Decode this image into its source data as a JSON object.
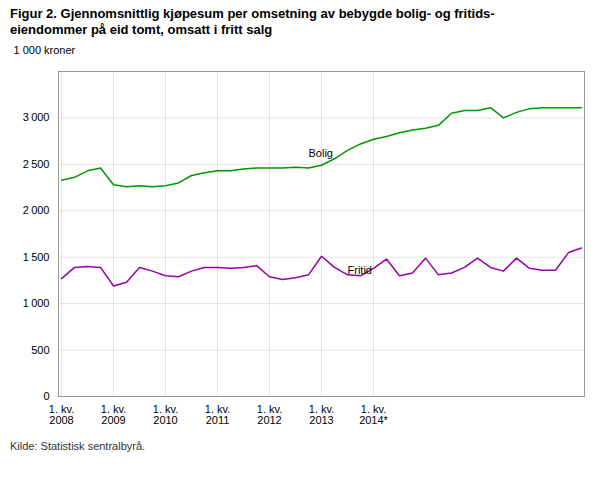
{
  "chart_data": {
    "type": "line",
    "title": "Figur 2. Gjennomsnittlig kjøpesum per omsetning av bebygde bolig- og fritids-\neiendommer på eid tomt, omsatt i fritt salg",
    "y_label": "1 000 kroner",
    "source": "Kilde: Statistisk sentralbyrå.",
    "categories": [
      "1. kv.\n2008",
      null,
      null,
      null,
      "1. kv.\n2009",
      null,
      null,
      null,
      "1. kv.\n2010",
      null,
      null,
      null,
      "1. kv.\n2011",
      null,
      null,
      null,
      "1. kv.\n2012",
      null,
      null,
      null,
      "1. kv.\n2013",
      null,
      null,
      null,
      "1. kv.\n2014*",
      null,
      null,
      null,
      null,
      null,
      null,
      null,
      null,
      null,
      null,
      null,
      null,
      null,
      null,
      null,
      null
    ],
    "series": [
      {
        "color": "#009900",
        "values": [
          2330,
          2360,
          2430,
          2460,
          2280,
          2260,
          2270,
          2260,
          2270,
          2300,
          2380,
          2410,
          2430,
          2430,
          2450,
          2460,
          2460,
          2460,
          2470,
          2460,
          2490,
          2560,
          2650,
          2720,
          2770,
          2800,
          2840,
          2870,
          2890,
          2920,
          3050,
          3080,
          3080,
          3110,
          3000,
          3060,
          3100,
          3110,
          3110,
          3110,
          3110
        ]
      },
      {
        "color": "#9900aa",
        "values": [
          1270,
          1390,
          1400,
          1390,
          1190,
          1230,
          1390,
          1350,
          1300,
          1290,
          1350,
          1390,
          1390,
          1380,
          1390,
          1410,
          1290,
          1260,
          1280,
          1310,
          1510,
          1390,
          1310,
          1300,
          1380,
          1480,
          1300,
          1330,
          1490,
          1310,
          1330,
          1390,
          1490,
          1390,
          1350,
          1490,
          1380,
          1360,
          1360,
          1550,
          1600
        ]
      }
    ],
    "annotations": [
      {
        "text": "Bolig",
        "x": 19,
        "y": 2620
      },
      {
        "text": "Fritid",
        "x": 22,
        "y": 1360
      }
    ],
    "ylim": [
      0,
      3500
    ],
    "yticks": [
      0,
      500,
      {
        "value": 1000,
        "label": "1 000"
      },
      {
        "value": 1500,
        "label": "1 500"
      },
      {
        "value": 2000,
        "label": "2 000"
      },
      {
        "value": 2500,
        "label": "2 500"
      },
      {
        "value": 3000,
        "label": "3 000"
      }
    ],
    "grid": true
  }
}
